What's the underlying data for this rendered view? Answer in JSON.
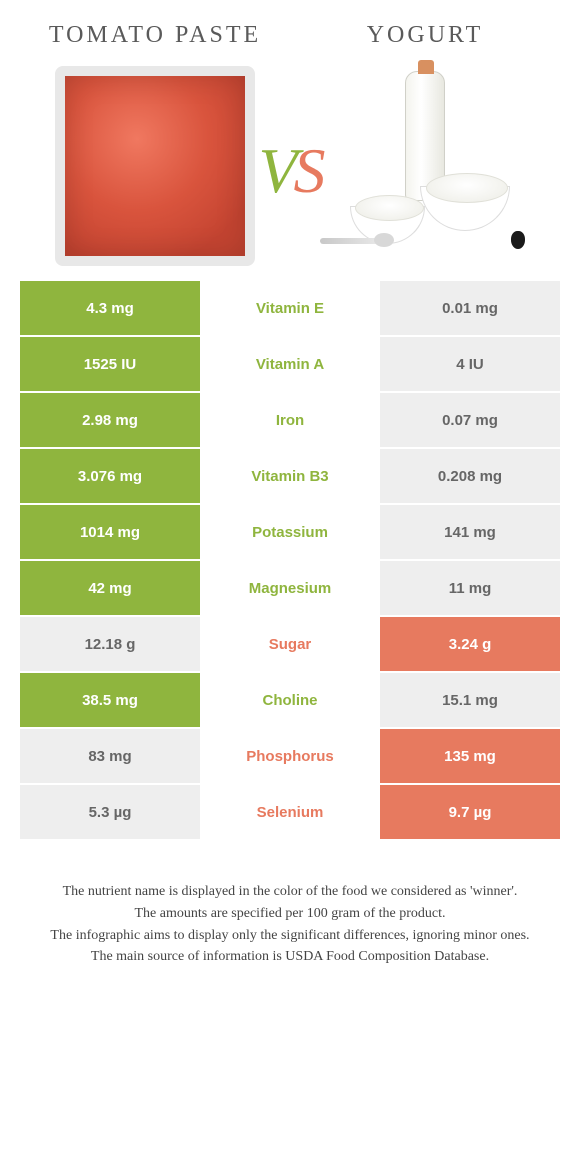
{
  "header": {
    "left": "TOMATO PASTE",
    "right": "YOGURT",
    "vs_v": "V",
    "vs_s": "S"
  },
  "colors": {
    "green": "#8fb53e",
    "orange": "#e77a5f",
    "grey": "#eeeeee"
  },
  "rows": [
    {
      "left": "4.3 mg",
      "nutrient": "Vitamin E",
      "right": "0.01 mg",
      "winner": "left"
    },
    {
      "left": "1525 IU",
      "nutrient": "Vitamin A",
      "right": "4 IU",
      "winner": "left"
    },
    {
      "left": "2.98 mg",
      "nutrient": "Iron",
      "right": "0.07 mg",
      "winner": "left"
    },
    {
      "left": "3.076 mg",
      "nutrient": "Vitamin B3",
      "right": "0.208 mg",
      "winner": "left"
    },
    {
      "left": "1014 mg",
      "nutrient": "Potassium",
      "right": "141 mg",
      "winner": "left"
    },
    {
      "left": "42 mg",
      "nutrient": "Magnesium",
      "right": "11 mg",
      "winner": "left"
    },
    {
      "left": "12.18 g",
      "nutrient": "Sugar",
      "right": "3.24 g",
      "winner": "right"
    },
    {
      "left": "38.5 mg",
      "nutrient": "Choline",
      "right": "15.1 mg",
      "winner": "left"
    },
    {
      "left": "83 mg",
      "nutrient": "Phosphorus",
      "right": "135 mg",
      "winner": "right"
    },
    {
      "left": "5.3 µg",
      "nutrient": "Selenium",
      "right": "9.7 µg",
      "winner": "right"
    }
  ],
  "footnotes": [
    "The nutrient name is displayed in the color of the food we considered as 'winner'.",
    "The amounts are specified per 100 gram of the product.",
    "The infographic aims to display only the significant differences, ignoring minor ones.",
    "The main source of information is USDA Food Composition Database."
  ]
}
